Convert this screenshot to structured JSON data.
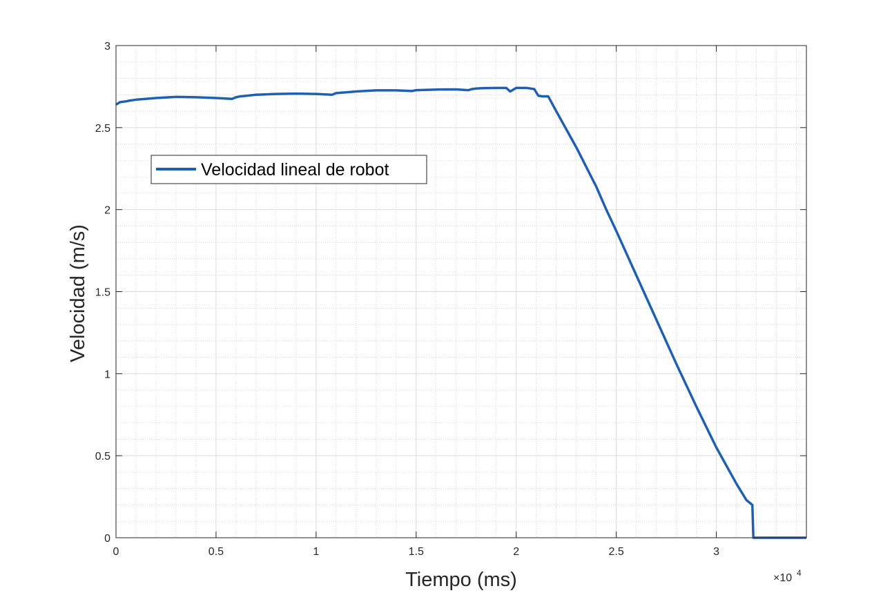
{
  "chart_data": {
    "type": "line",
    "title": "",
    "xlabel": "Tiempo (ms)",
    "ylabel": "Velocidad (m/s)",
    "x_multiplier_label": "×10",
    "x_multiplier_exponent": "4",
    "xlim": [
      0,
      34500
    ],
    "ylim": [
      0,
      3
    ],
    "x_ticks": [
      0,
      5000,
      10000,
      15000,
      20000,
      25000,
      30000
    ],
    "x_tick_labels": [
      "0",
      "0.5",
      "1",
      "1.5",
      "2",
      "2.5",
      "3"
    ],
    "y_ticks": [
      0,
      0.5,
      1,
      1.5,
      2,
      2.5,
      3
    ],
    "y_tick_labels": [
      "0",
      "0.5",
      "1",
      "1.5",
      "2",
      "2.5",
      "3"
    ],
    "grid": true,
    "minor_grid": true,
    "legend_position": "top-left",
    "series": [
      {
        "name": "Velocidad lineal de robot",
        "color": "#1f5fb0",
        "x": [
          0,
          200,
          500,
          700,
          1000,
          2000,
          3000,
          4000,
          5000,
          5800,
          6000,
          6200,
          7000,
          8000,
          9000,
          10000,
          10800,
          11000,
          12000,
          13000,
          14000,
          14800,
          15000,
          16000,
          17000,
          17600,
          17800,
          18000,
          18300,
          19000,
          19500,
          19700,
          20000,
          20500,
          20900,
          21100,
          21300,
          21600,
          22000,
          23000,
          24000,
          24500,
          25000,
          26000,
          27000,
          28000,
          29000,
          30000,
          31000,
          31500,
          31800,
          31850,
          32000,
          33000,
          34500
        ],
        "y": [
          2.64,
          2.655,
          2.66,
          2.665,
          2.67,
          2.68,
          2.687,
          2.685,
          2.68,
          2.675,
          2.685,
          2.69,
          2.7,
          2.705,
          2.707,
          2.705,
          2.7,
          2.71,
          2.72,
          2.727,
          2.727,
          2.723,
          2.728,
          2.732,
          2.733,
          2.728,
          2.735,
          2.738,
          2.74,
          2.742,
          2.742,
          2.72,
          2.742,
          2.742,
          2.735,
          2.695,
          2.69,
          2.69,
          2.6,
          2.38,
          2.14,
          2.0,
          1.87,
          1.6,
          1.33,
          1.06,
          0.8,
          0.55,
          0.33,
          0.23,
          0.2,
          0.0,
          0.0,
          0.0,
          0.0
        ]
      }
    ]
  }
}
